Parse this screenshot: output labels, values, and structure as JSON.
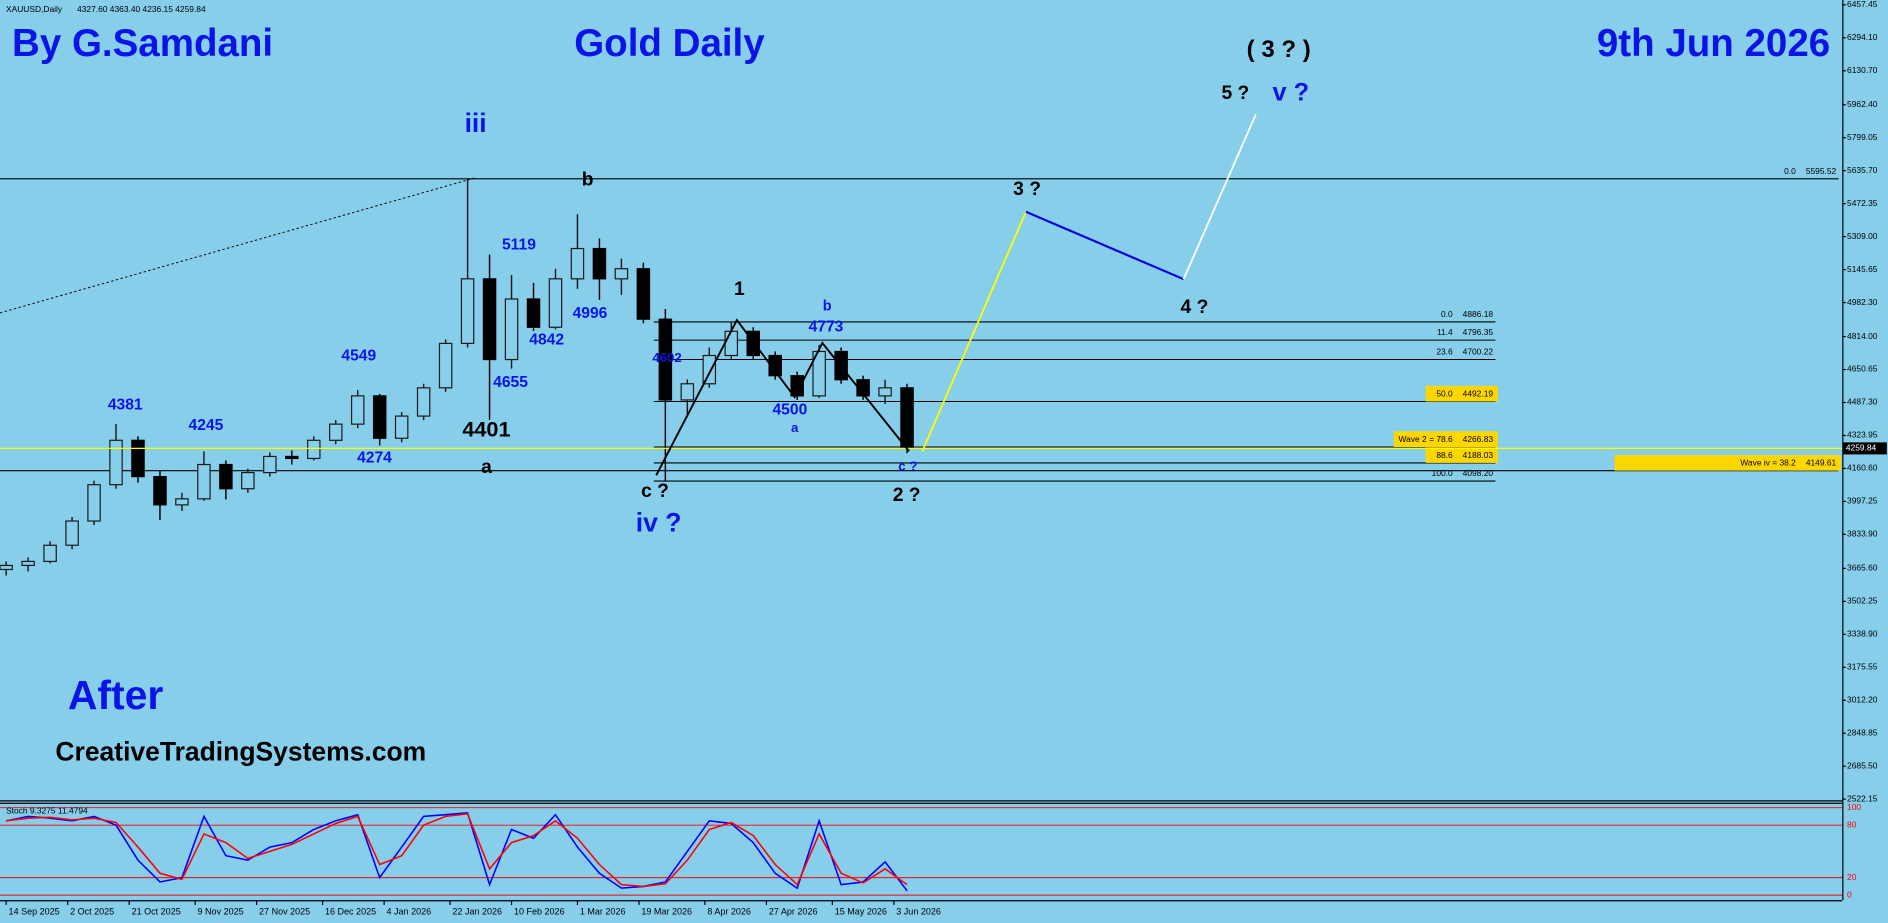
{
  "chart_data": [
    {
      "type": "candlestick",
      "symbol": "XAUUSD,Daily",
      "ohlc_text": "4327.60 4363.40 4236.15 4259.84",
      "author": "By G.Samdani",
      "title": "Gold Daily",
      "date": "9th Jun 2026",
      "footer": "After",
      "website": "CreativeTradingSystems.com",
      "annotations": [
        "( 3 ? )",
        "5 ?",
        "v ?",
        "iii",
        "b",
        "3 ?",
        "5119",
        "1",
        "b",
        "4 ?",
        "4996",
        "4773",
        "4842",
        "4549",
        "4602",
        "4655",
        "4381",
        "4500",
        "4245",
        "a",
        "4401",
        "4274",
        "a",
        "c ?",
        "c ?",
        "2 ?",
        "iv ?"
      ],
      "x": [
        0,
        5,
        10,
        15,
        20,
        25,
        30,
        35,
        40,
        45,
        50,
        55,
        60,
        65,
        70,
        75,
        80,
        85,
        90,
        95,
        100,
        105,
        110,
        115,
        120,
        125,
        130,
        135,
        140,
        145,
        150,
        155,
        160,
        165,
        170,
        175,
        180,
        185,
        190,
        195,
        200,
        205
      ],
      "open": [
        3660,
        3680,
        3700,
        3780,
        3900,
        4080,
        4300,
        4120,
        3980,
        4010,
        4180,
        4060,
        4140,
        4220,
        4210,
        4300,
        4380,
        4520,
        4310,
        4420,
        4560,
        4780,
        5100,
        4700,
        5000,
        4860,
        5100,
        5250,
        5100,
        5150,
        4900,
        4500,
        4580,
        4720,
        4840,
        4720,
        4620,
        4520,
        4740,
        4600,
        4520,
        4560
      ],
      "high": [
        3700,
        3720,
        3800,
        3920,
        4100,
        4381,
        4320,
        4150,
        4040,
        4245,
        4200,
        4160,
        4240,
        4250,
        4320,
        4400,
        4549,
        4530,
        4440,
        4580,
        4800,
        5595.52,
        5220,
        5119,
        5080,
        5150,
        5420,
        5300,
        5200,
        5180,
        4950,
        4602,
        4760,
        4886.18,
        4860,
        4740,
        4640,
        4773,
        4760,
        4620,
        4600,
        4580
      ],
      "low": [
        3630,
        3650,
        3690,
        3760,
        3880,
        4060,
        4090,
        3905,
        3950,
        4000,
        4007,
        4040,
        4120,
        4180,
        4200,
        4280,
        4360,
        4274,
        4290,
        4400,
        4540,
        4760,
        4401,
        4655,
        4842,
        4850,
        5050,
        4996,
        5020,
        4880,
        4098.2,
        4420,
        4560,
        4700,
        4700,
        4600,
        4500,
        4510,
        4580,
        4500,
        4480,
        4236.15
      ],
      "close": [
        3680,
        3700,
        3780,
        3900,
        4080,
        4300,
        4120,
        3980,
        4010,
        4180,
        4060,
        4140,
        4220,
        4210,
        4300,
        4380,
        4520,
        4310,
        4420,
        4560,
        4780,
        5100,
        4700,
        5000,
        4860,
        5100,
        5250,
        5100,
        5150,
        4900,
        4500,
        4580,
        4720,
        4840,
        4720,
        4620,
        4520,
        4740,
        4600,
        4520,
        4560,
        4259.84
      ],
      "up_color": "#1a1a1a",
      "down_color": "#000000",
      "current_price_color": "#ffff00",
      "xlim": [
        -1.4,
        417.8
      ],
      "xticks": [
        {
          "value": 0,
          "label": "14 Sep 2025"
        },
        {
          "value": 14,
          "label": "2 Oct 2025"
        },
        {
          "value": 28,
          "label": "21 Oct 2025"
        },
        {
          "value": 43,
          "label": "9 Nov 2025"
        },
        {
          "value": 57,
          "label": "27 Nov 2025"
        },
        {
          "value": 72,
          "label": "16 Dec 2025"
        },
        {
          "value": 86,
          "label": "4 Jan 2026"
        },
        {
          "value": 101,
          "label": "22 Jan 2026"
        },
        {
          "value": 115,
          "label": "10 Feb 2026"
        },
        {
          "value": 130,
          "label": "1 Mar 2026"
        },
        {
          "value": 144,
          "label": "19 Mar 2026"
        },
        {
          "value": 159,
          "label": "8 Apr 2026"
        },
        {
          "value": 173,
          "label": "27 Apr 2026"
        },
        {
          "value": 188,
          "label": "15 May 2026"
        },
        {
          "value": 202,
          "label": "3 Jun 2026"
        }
      ],
      "ylim": [
        2516.7,
        6481.3
      ],
      "yticks": [
        6457.45,
        {
          "value": 6294.1,
          "label": "6294.10"
        },
        {
          "value": 6130.7,
          "label": "6130.70"
        },
        {
          "value": 5962.4,
          "label": "5962.40"
        },
        5799.05,
        {
          "value": 5635.7,
          "label": "5635.70"
        },
        5472.35,
        {
          "value": 5309,
          "label": "5309.00"
        },
        5145.65,
        {
          "value": 4982.3,
          "label": "4982.30"
        },
        {
          "value": 4814,
          "label": "4814.00"
        },
        4650.65,
        {
          "value": 4487.3,
          "label": "4487.30"
        },
        4323.95,
        {
          "value": 4160.6,
          "label": "4160.60"
        },
        3997.25,
        {
          "value": 3833.9,
          "label": "3833.90"
        },
        {
          "value": 3665.6,
          "label": "3665.60"
        },
        3502.25,
        {
          "value": 3338.9,
          "label": "3338.90"
        },
        3175.55,
        {
          "value": 3012.2,
          "label": "3012.20"
        },
        2848.85,
        {
          "value": 2685.5,
          "label": "2685.50"
        },
        2522.15
      ],
      "fib_levels": [
        {
          "ratio": "0.0",
          "price": 4886.18,
          "highlight": false
        },
        {
          "ratio": "11.4",
          "price": 4796.35,
          "highlight": false
        },
        {
          "ratio": "23.6",
          "price": 4700.22,
          "highlight": false
        },
        {
          "ratio": "50.0",
          "price": 4492.19,
          "highlight": true
        },
        {
          "ratio": "Wave 2 = 78.6",
          "price": 4266.83,
          "highlight": true
        },
        {
          "ratio": "88.6",
          "price": 4188.03,
          "highlight": true
        },
        {
          "ratio": "100.0",
          "price": 4098.2,
          "price_label": "4098.20",
          "highlight": false
        }
      ],
      "wave_levels": [
        {
          "ratio": "0.0",
          "price": 5595.52,
          "highlight": false
        },
        {
          "ratio": "Wave iv = 38.2",
          "price": 4149.61,
          "highlight": true
        }
      ],
      "highlight_color": "#ffd700"
    },
    {
      "type": "line",
      "title": "Stoch 9.3275 11.4794",
      "series": [
        {
          "color": "#0000ff",
          "values": [
            85,
            90,
            88,
            85,
            90,
            80,
            40,
            15,
            20,
            90,
            45,
            40,
            55,
            60,
            75,
            85,
            92,
            20,
            55,
            90,
            92,
            94,
            12,
            75,
            65,
            92,
            55,
            25,
            8,
            10,
            15,
            50,
            85,
            82,
            60,
            25,
            8,
            85,
            12,
            15,
            38,
            5
          ]
        },
        {
          "color": "#ff0000",
          "values": [
            85,
            88,
            89,
            86,
            88,
            83,
            55,
            25,
            18,
            70,
            60,
            42,
            50,
            58,
            70,
            82,
            90,
            35,
            45,
            80,
            90,
            93,
            30,
            60,
            68,
            85,
            65,
            35,
            12,
            10,
            13,
            40,
            75,
            83,
            68,
            35,
            12,
            70,
            25,
            14,
            30,
            12
          ]
        }
      ],
      "ylim": [
        -3,
        103
      ],
      "yticks": [
        0,
        20,
        80,
        100
      ],
      "level_color": "#ff0000"
    }
  ]
}
